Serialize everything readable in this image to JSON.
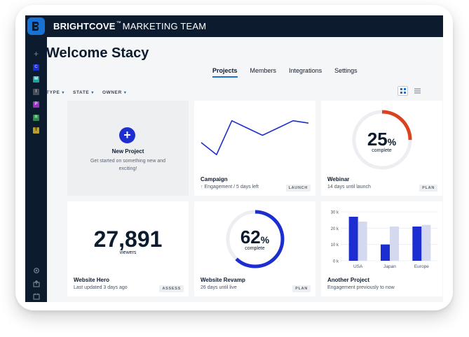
{
  "brand": {
    "name": "BRIGHTCOVE",
    "team": "MARKETING TEAM"
  },
  "rail": {
    "logo_letter": "B",
    "plus": "+",
    "chips": [
      {
        "letter": "C",
        "color": "#1d2ed0",
        "text_color": "#9fb0ff"
      },
      {
        "letter": "M",
        "color": "#1fa3a0",
        "text_color": "#ffffff"
      },
      {
        "letter": "I",
        "color": "#4a4f57",
        "text_color": "#b9bec6"
      },
      {
        "letter": "P",
        "color": "#9a2fc0",
        "text_color": "#f0c8ff"
      },
      {
        "letter": "R",
        "color": "#2a8a4a",
        "text_color": "#b8f0c8"
      },
      {
        "letter": "T",
        "color": "#b9a02c",
        "text_color": "#2a2000"
      }
    ],
    "bottom_icons": [
      "gear-icon",
      "upload-icon",
      "calendar-icon"
    ]
  },
  "page": {
    "welcome": "Welcome Stacy"
  },
  "tabs": [
    {
      "label": "Projects",
      "active": true
    },
    {
      "label": "Members",
      "active": false
    },
    {
      "label": "Integrations",
      "active": false
    },
    {
      "label": "Settings",
      "active": false
    }
  ],
  "filters": [
    "TYPE",
    "STATE",
    "OWNER"
  ],
  "view_toggle": [
    "grid-view-icon",
    "list-view-icon"
  ],
  "cards": {
    "new_project": {
      "title": "New Project",
      "desc": "Get started on something new and exciting!"
    },
    "campaign": {
      "title": "Campaign",
      "metric": "Engagement",
      "sep": "/",
      "sub": "5 days left",
      "badge": "LAUNCH",
      "line_values": [
        22,
        12,
        40,
        34,
        28,
        34,
        40,
        38
      ],
      "line_color": "#1d2ed0"
    },
    "webinar": {
      "title": "Webinar",
      "sub": "14 days until launch",
      "badge": "PLAN",
      "percent": 25,
      "percent_label": "25",
      "percent_sign": "%",
      "complete_label": "complete",
      "ring_color": "#d9431f"
    },
    "website_hero": {
      "title": "Website Hero",
      "sub": "Last updated 3 days ago",
      "badge": "ASSESS",
      "number": "27,891",
      "number_label": "viewers"
    },
    "website_revamp": {
      "title": "Website Revamp",
      "sub": "26 days until live",
      "badge": "PLAN",
      "percent": 62,
      "percent_label": "62",
      "percent_sign": "%",
      "complete_label": "complete",
      "ring_color": "#1d2ed0"
    },
    "another_project": {
      "title": "Another Project",
      "sub": "Engagement previously to now"
    }
  },
  "chart_data": {
    "type": "bar",
    "categories": [
      "USA",
      "Japan",
      "Europe"
    ],
    "series": [
      {
        "values": [
          27,
          10,
          21
        ],
        "color": "#1d2ed0"
      },
      {
        "values": [
          24,
          21,
          22
        ],
        "color": "#d5d9ef"
      }
    ],
    "y_ticks": [
      "30 k",
      "20 k",
      "10 k",
      "0 k"
    ],
    "ylim": [
      0,
      30
    ]
  }
}
